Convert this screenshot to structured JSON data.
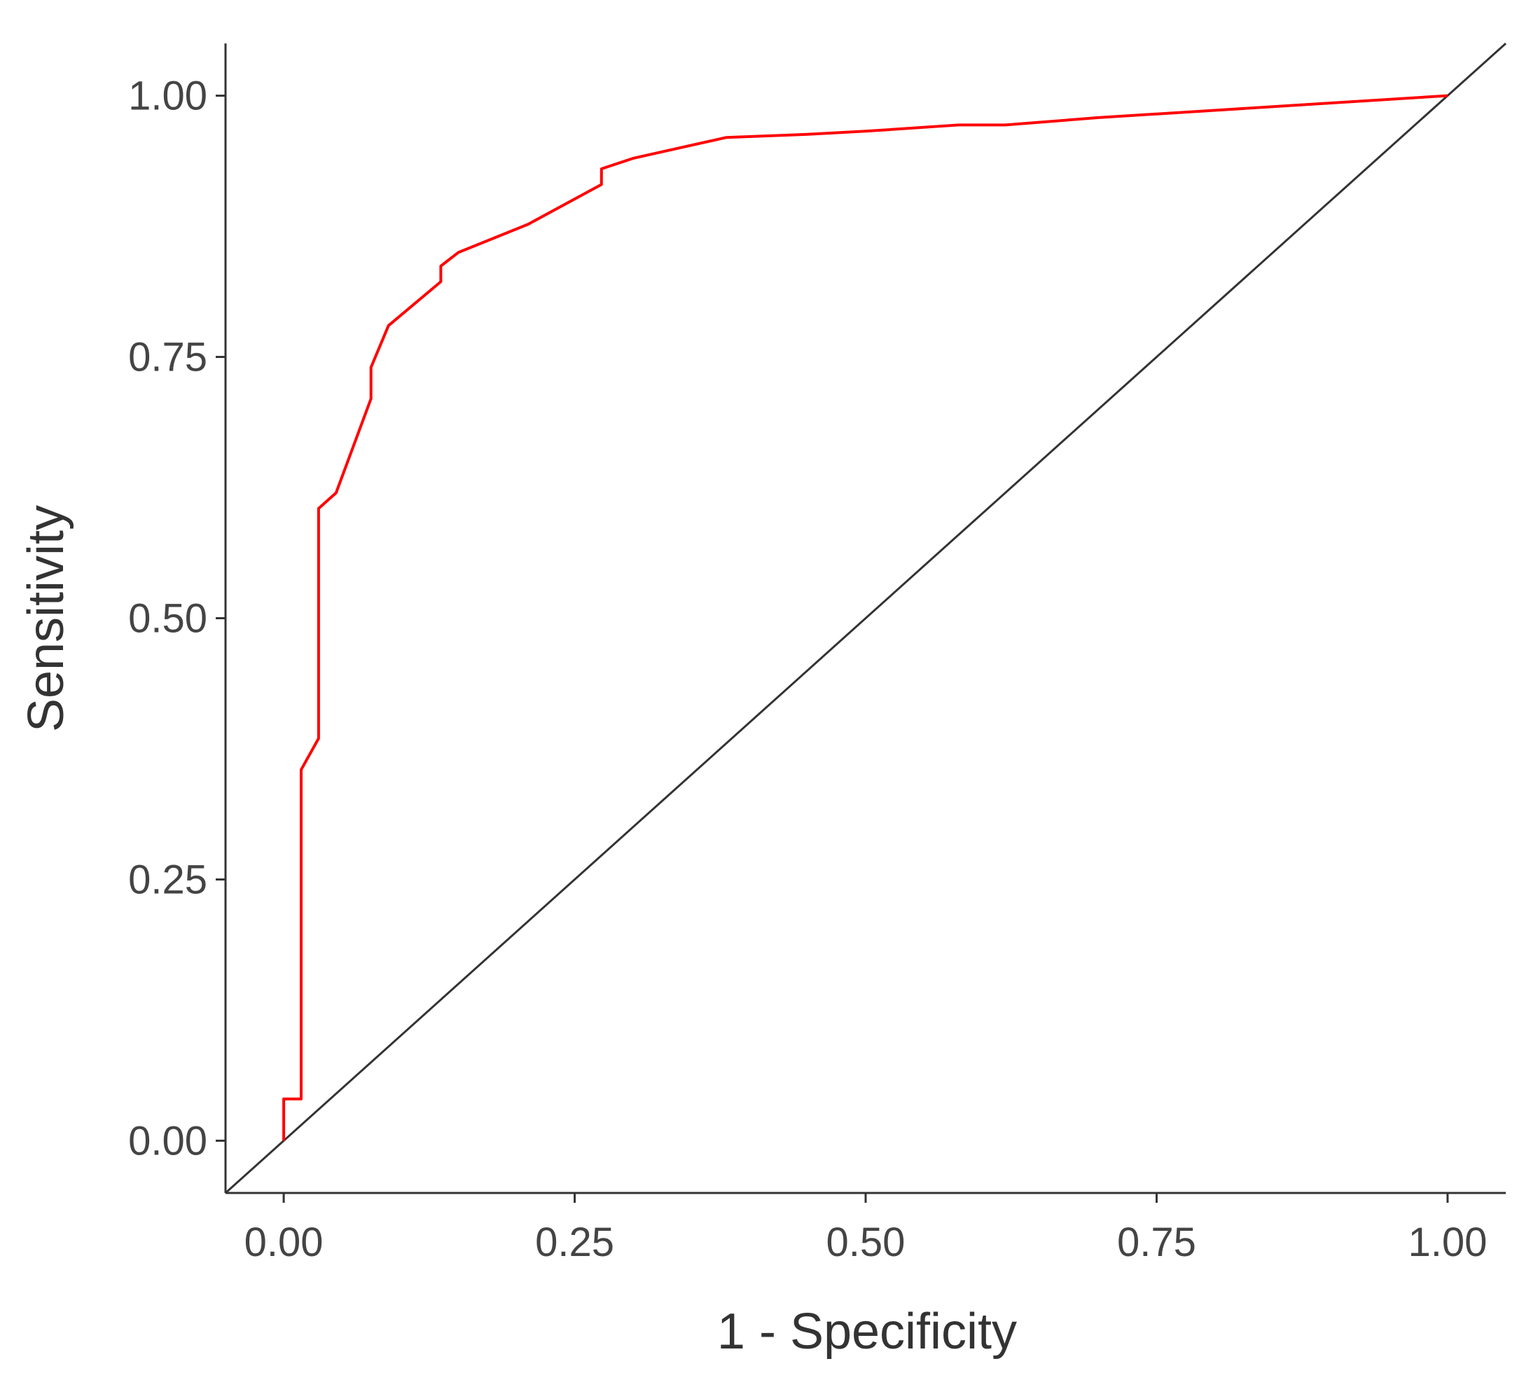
{
  "chart_data": {
    "type": "line",
    "title": "",
    "xlabel": "1 - Specificity",
    "ylabel": "Sensitivity",
    "xlim": [
      -0.05,
      1.05
    ],
    "ylim": [
      -0.05,
      1.05
    ],
    "x_ticks": [
      "0.00",
      "0.25",
      "0.50",
      "0.75",
      "1.00"
    ],
    "y_ticks": [
      "0.00",
      "0.25",
      "0.50",
      "0.75",
      "1.00"
    ],
    "grid": false,
    "legend": "none",
    "series": [
      {
        "color": "#ff0000",
        "x": [
          0.0,
          0.0,
          0.015,
          0.015,
          0.03,
          0.03,
          0.045,
          0.075,
          0.075,
          0.09,
          0.135,
          0.135,
          0.15,
          0.21,
          0.273,
          0.273,
          0.3,
          0.38,
          0.45,
          0.5,
          0.58,
          0.62,
          0.7,
          0.8,
          0.9,
          1.0
        ],
        "y": [
          0.0,
          0.04,
          0.04,
          0.355,
          0.385,
          0.605,
          0.62,
          0.71,
          0.74,
          0.78,
          0.822,
          0.837,
          0.85,
          0.877,
          0.915,
          0.93,
          0.94,
          0.96,
          0.963,
          0.966,
          0.972,
          0.972,
          0.979,
          0.986,
          0.993,
          1.0
        ]
      },
      {
        "color": "#333333",
        "x": [
          -0.05,
          1.05
        ],
        "y": [
          -0.05,
          1.05
        ]
      }
    ]
  }
}
